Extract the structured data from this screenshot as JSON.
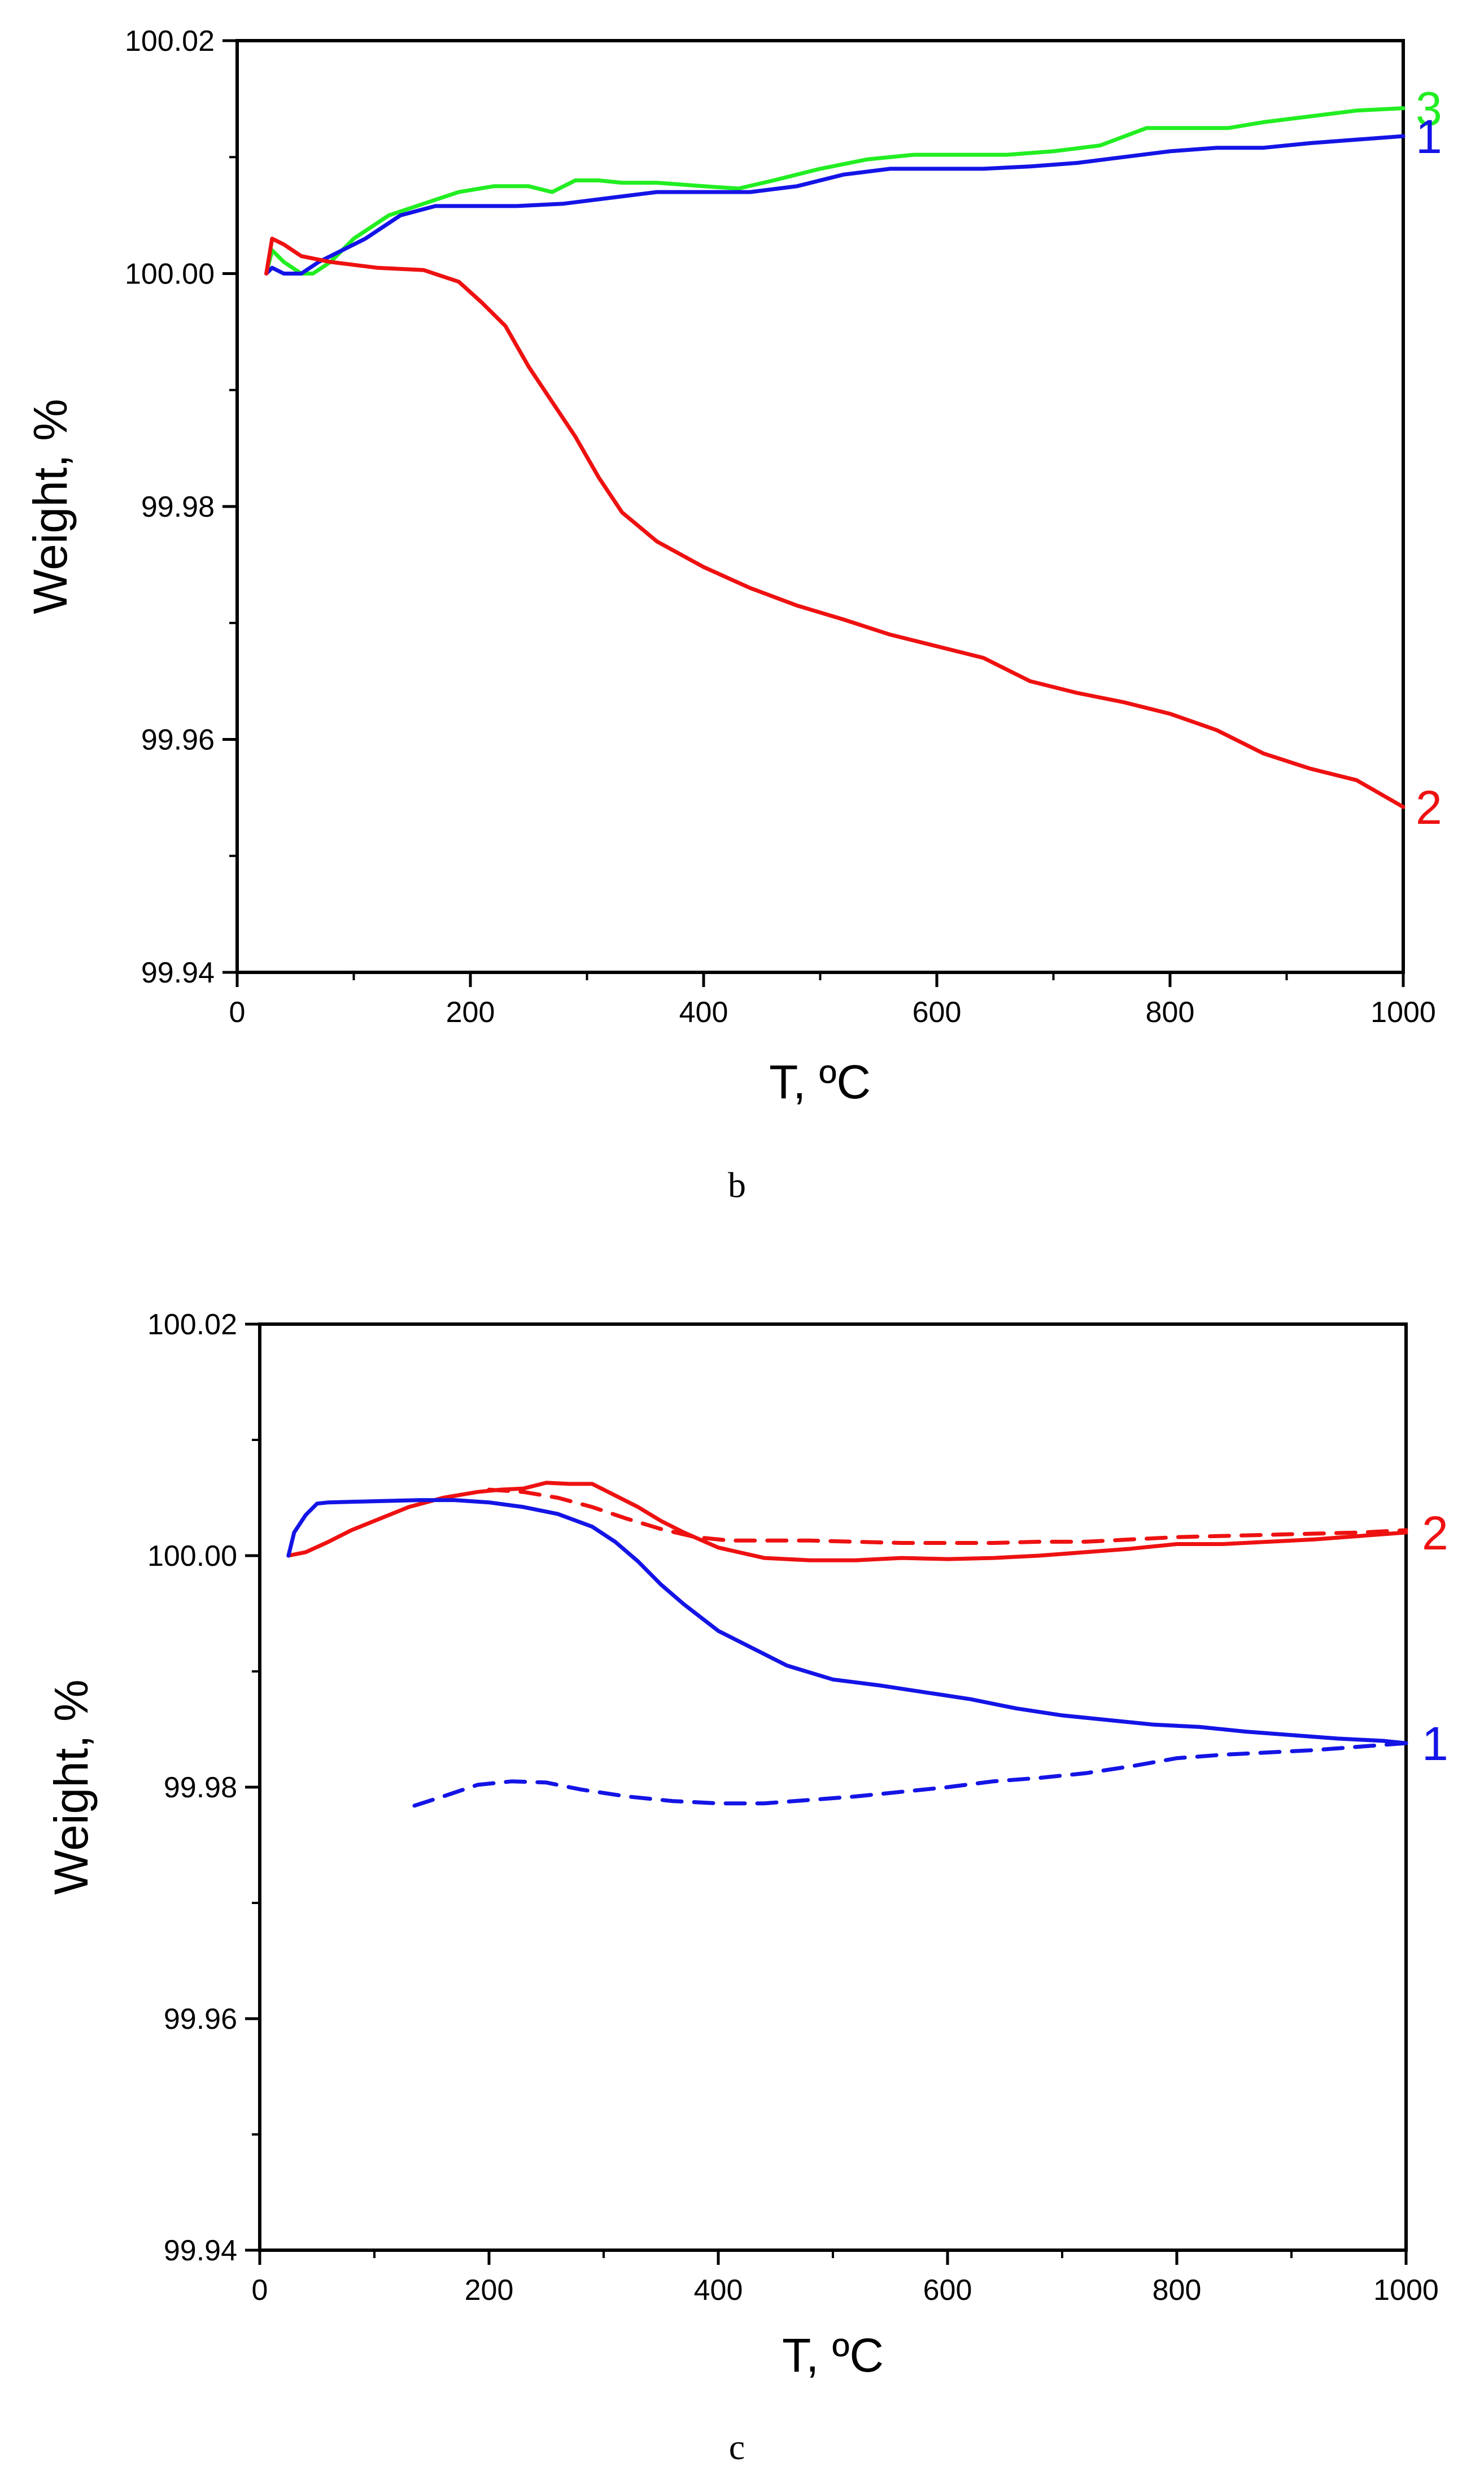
{
  "colors": {
    "blue": "#1414e6",
    "red": "#ee1111",
    "green": "#22ee22",
    "axis": "#000000"
  },
  "chart_data": [
    {
      "panel": "b",
      "type": "line",
      "caption": "b",
      "xlabel": "T, ºC",
      "ylabel": "Weight, %",
      "xlim": [
        0,
        1000
      ],
      "ylim": [
        99.94,
        100.02
      ],
      "x_ticks": [
        0,
        200,
        400,
        600,
        800,
        1000
      ],
      "x_tick_labels": [
        "0",
        "200",
        "400",
        "600",
        "800",
        "1000"
      ],
      "x_minor_step": 100,
      "y_ticks": [
        99.94,
        99.96,
        99.98,
        100.0,
        100.02
      ],
      "y_tick_labels": [
        "99.94",
        "99.96",
        "99.98",
        "100.00",
        "100.02"
      ],
      "y_minor_step": 0.01,
      "series": [
        {
          "name": "3",
          "label": "3",
          "color": "#22ee22",
          "style": "solid",
          "x": [
            25,
            30,
            40,
            55,
            65,
            80,
            100,
            130,
            160,
            190,
            220,
            250,
            270,
            290,
            310,
            330,
            360,
            400,
            430,
            460,
            500,
            540,
            580,
            620,
            660,
            700,
            740,
            780,
            810,
            850,
            880,
            920,
            960,
            1000
          ],
          "y": [
            100.0,
            100.002,
            100.001,
            100.0,
            100.0,
            100.001,
            100.003,
            100.005,
            100.006,
            100.007,
            100.0075,
            100.0075,
            100.007,
            100.008,
            100.008,
            100.0078,
            100.0078,
            100.0075,
            100.0073,
            100.008,
            100.009,
            100.0098,
            100.0102,
            100.0102,
            100.0102,
            100.0105,
            100.011,
            100.0125,
            100.0125,
            100.0125,
            100.013,
            100.0135,
            100.014,
            100.0142
          ]
        },
        {
          "name": "1",
          "label": "1",
          "color": "#1414e6",
          "style": "solid",
          "x": [
            25,
            30,
            40,
            55,
            70,
            90,
            110,
            140,
            170,
            200,
            240,
            280,
            320,
            360,
            400,
            440,
            480,
            520,
            560,
            600,
            640,
            680,
            720,
            760,
            800,
            840,
            880,
            920,
            960,
            1000
          ],
          "y": [
            100.0,
            100.0005,
            100.0,
            100.0,
            100.001,
            100.002,
            100.003,
            100.005,
            100.0058,
            100.0058,
            100.0058,
            100.006,
            100.0065,
            100.007,
            100.007,
            100.007,
            100.0075,
            100.0085,
            100.009,
            100.009,
            100.009,
            100.0092,
            100.0095,
            100.01,
            100.0105,
            100.0108,
            100.0108,
            100.0112,
            100.0115,
            100.0118
          ]
        },
        {
          "name": "2",
          "label": "2",
          "color": "#ee1111",
          "style": "solid",
          "x": [
            25,
            30,
            40,
            55,
            80,
            120,
            160,
            190,
            210,
            230,
            250,
            270,
            290,
            310,
            330,
            360,
            400,
            440,
            480,
            520,
            560,
            600,
            640,
            680,
            720,
            760,
            800,
            840,
            880,
            920,
            960,
            1000
          ],
          "y": [
            100.0,
            100.003,
            100.0025,
            100.0015,
            100.001,
            100.0005,
            100.0003,
            99.9993,
            99.9975,
            99.9955,
            99.992,
            99.989,
            99.986,
            99.9825,
            99.9795,
            99.977,
            99.9748,
            99.973,
            99.9715,
            99.9703,
            99.969,
            99.968,
            99.967,
            99.965,
            99.964,
            99.9632,
            99.9622,
            99.9608,
            99.9588,
            99.9575,
            99.9565,
            99.9542
          ]
        }
      ]
    },
    {
      "panel": "c",
      "type": "line",
      "caption": "c",
      "xlabel": "T, ºC",
      "ylabel": "Weight, %",
      "xlim": [
        0,
        1000
      ],
      "ylim": [
        99.94,
        100.02
      ],
      "x_ticks": [
        0,
        200,
        400,
        600,
        800,
        1000
      ],
      "x_tick_labels": [
        "0",
        "200",
        "400",
        "600",
        "800",
        "1000"
      ],
      "x_minor_step": 100,
      "y_ticks": [
        99.94,
        99.96,
        99.98,
        100.0,
        100.02
      ],
      "y_tick_labels": [
        "99.94",
        "99.96",
        "99.98",
        "100.00",
        "100.02"
      ],
      "y_minor_step": 0.01,
      "series": [
        {
          "name": "2",
          "label": "2",
          "color": "#ee1111",
          "style": "solid",
          "x": [
            25,
            40,
            60,
            80,
            100,
            130,
            160,
            190,
            210,
            230,
            250,
            270,
            290,
            310,
            330,
            350,
            370,
            400,
            440,
            480,
            520,
            560,
            600,
            640,
            680,
            720,
            760,
            800,
            840,
            880,
            920,
            960,
            1000
          ],
          "y": [
            100.0,
            100.0003,
            100.0012,
            100.0022,
            100.003,
            100.0042,
            100.005,
            100.0055,
            100.0057,
            100.0058,
            100.0063,
            100.0062,
            100.0062,
            100.0052,
            100.0042,
            100.003,
            100.002,
            100.0007,
            99.9998,
            99.9996,
            99.9996,
            99.9998,
            99.9997,
            99.9998,
            100.0,
            100.0003,
            100.0006,
            100.001,
            100.001,
            100.0012,
            100.0014,
            100.0017,
            100.002
          ]
        },
        {
          "name": "2 (dashed)",
          "label": "",
          "color": "#ee1111",
          "style": "dashed",
          "x": [
            200,
            230,
            260,
            290,
            320,
            350,
            380,
            410,
            440,
            480,
            520,
            560,
            600,
            640,
            680,
            720,
            760,
            800,
            840,
            880,
            920,
            960,
            1000
          ],
          "y": [
            100.0057,
            100.0055,
            100.005,
            100.0042,
            100.0032,
            100.0023,
            100.0016,
            100.0013,
            100.0013,
            100.0013,
            100.0012,
            100.0011,
            100.0011,
            100.0011,
            100.0012,
            100.0012,
            100.0014,
            100.0016,
            100.0017,
            100.0018,
            100.0019,
            100.002,
            100.0022
          ]
        },
        {
          "name": "1",
          "label": "1",
          "color": "#1414e6",
          "style": "solid",
          "x": [
            25,
            30,
            40,
            50,
            60,
            100,
            140,
            170,
            200,
            230,
            260,
            290,
            310,
            330,
            350,
            370,
            400,
            430,
            460,
            500,
            540,
            580,
            620,
            660,
            700,
            740,
            780,
            820,
            860,
            900,
            940,
            980,
            1000
          ],
          "y": [
            100.0,
            100.002,
            100.0035,
            100.0045,
            100.0046,
            100.0047,
            100.0048,
            100.0048,
            100.0046,
            100.0042,
            100.0036,
            100.0025,
            100.0012,
            99.9995,
            99.9975,
            99.9958,
            99.9935,
            99.992,
            99.9905,
            99.9893,
            99.9888,
            99.9882,
            99.9876,
            99.9868,
            99.9862,
            99.9858,
            99.9854,
            99.9852,
            99.9848,
            99.9845,
            99.9842,
            99.984,
            99.9838
          ]
        },
        {
          "name": "1 (dashed)",
          "label": "",
          "color": "#1414e6",
          "style": "dashed",
          "x": [
            135,
            160,
            190,
            220,
            250,
            280,
            320,
            360,
            400,
            440,
            480,
            520,
            560,
            600,
            640,
            680,
            720,
            760,
            800,
            840,
            880,
            920,
            960,
            1000
          ],
          "y": [
            99.9784,
            99.9792,
            99.9802,
            99.9805,
            99.9804,
            99.9798,
            99.9792,
            99.9788,
            99.9786,
            99.9786,
            99.9789,
            99.9792,
            99.9796,
            99.98,
            99.9805,
            99.9808,
            99.9812,
            99.9818,
            99.9825,
            99.9828,
            99.983,
            99.9832,
            99.9835,
            99.9838
          ]
        }
      ]
    }
  ]
}
